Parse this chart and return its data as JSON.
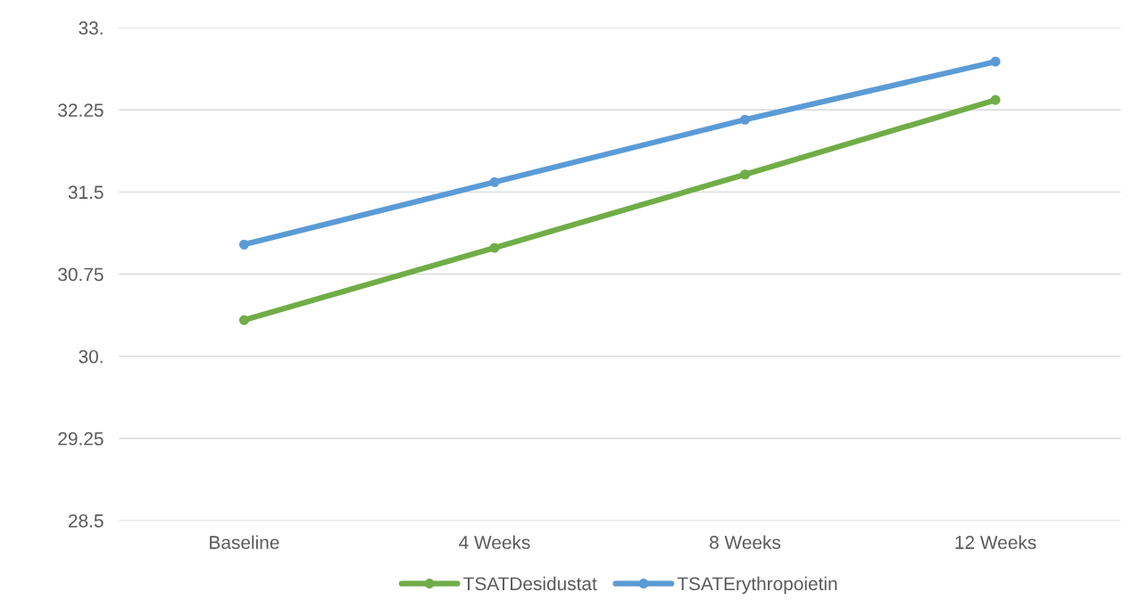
{
  "chart_data": {
    "type": "line",
    "categories": [
      "Baseline",
      "4 Weeks",
      "8 Weeks",
      "12 Weeks"
    ],
    "series": [
      {
        "name": "TSATDesidustat",
        "color": "#70ad47",
        "values": [
          30.33,
          30.99,
          31.66,
          32.34
        ]
      },
      {
        "name": "TSATErythropoietin",
        "color": "#5b9bd5",
        "values": [
          31.02,
          31.59,
          32.16,
          32.69
        ]
      }
    ],
    "ylim": [
      28.5,
      33
    ],
    "yticks": [
      28.5,
      29.25,
      31.5,
      30.75,
      {
        "value": 30,
        "label": "30."
      },
      32.25,
      {
        "value": 33,
        "label": "33."
      }
    ],
    "grid": "y",
    "legend": "bottom",
    "marker": "circle",
    "line_style": "solid"
  }
}
